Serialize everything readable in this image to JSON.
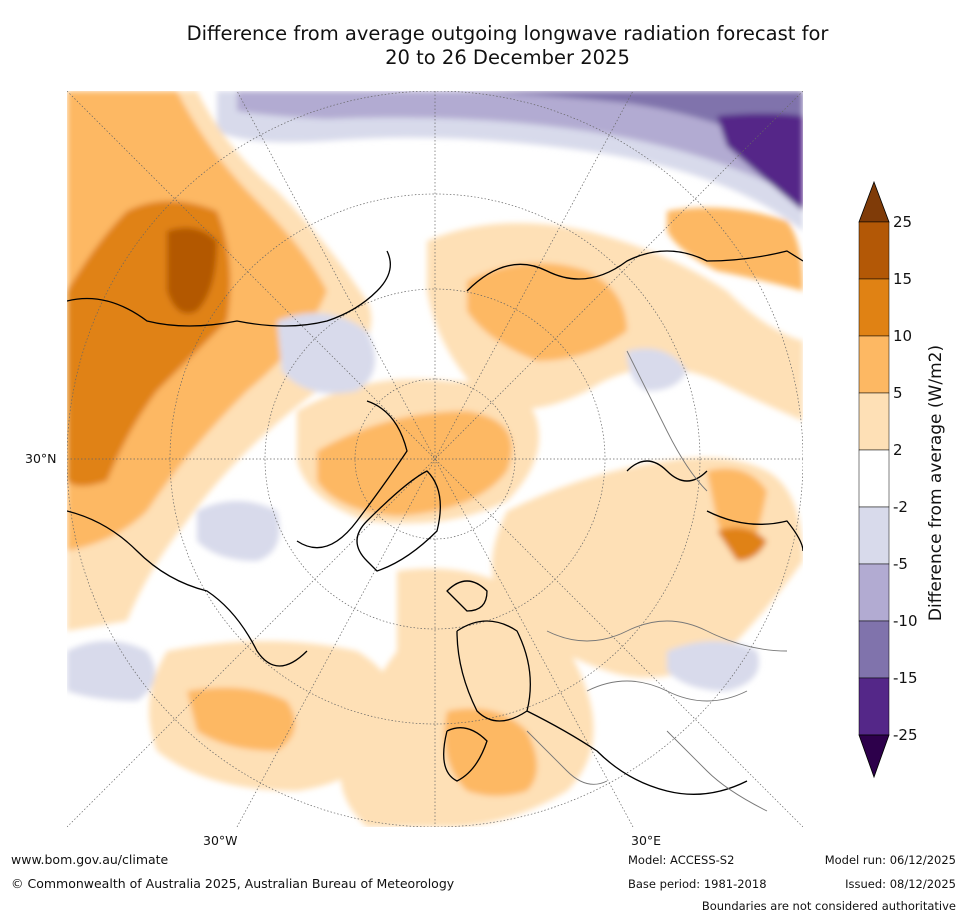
{
  "title": {
    "line1": "Difference from average outgoing longwave radiation forecast for",
    "line2": "20 to 26 December 2025"
  },
  "map": {
    "labels": {
      "lat_30n": "30°N",
      "lon_30w": "30°W",
      "lon_30e": "30°E"
    }
  },
  "colorbar": {
    "label": "Difference from average (W/m2)",
    "ticks": [
      "25",
      "15",
      "10",
      "5",
      "2",
      "-2",
      "-5",
      "-10",
      "-15",
      "-25"
    ],
    "bins": [
      {
        "range": ">25",
        "color": "#7f3b08"
      },
      {
        "range": "15 to 25",
        "color": "#b35806"
      },
      {
        "range": "10 to 15",
        "color": "#e08214"
      },
      {
        "range": "5 to 10",
        "color": "#fdb863"
      },
      {
        "range": "2 to 5",
        "color": "#fee0b6"
      },
      {
        "range": "-2 to 2",
        "color": "#ffffff"
      },
      {
        "range": "-5 to -2",
        "color": "#d8daeb"
      },
      {
        "range": "-10 to -5",
        "color": "#b2abd2"
      },
      {
        "range": "-15 to -10",
        "color": "#8073ac"
      },
      {
        "range": "-25 to -15",
        "color": "#542788"
      },
      {
        "range": "<-25",
        "color": "#2d004b"
      }
    ]
  },
  "footer": {
    "website": "www.bom.gov.au/climate",
    "copyright": "© Commonwealth of Australia 2025, Australian Bureau of Meteorology",
    "model": "Model: ACCESS-S2",
    "base_period": "Base period: 1981-2018",
    "model_run": "Model run: 06/12/2025",
    "issued": "Issued: 08/12/2025",
    "disclaimer": "Boundaries are not considered authoritative"
  }
}
